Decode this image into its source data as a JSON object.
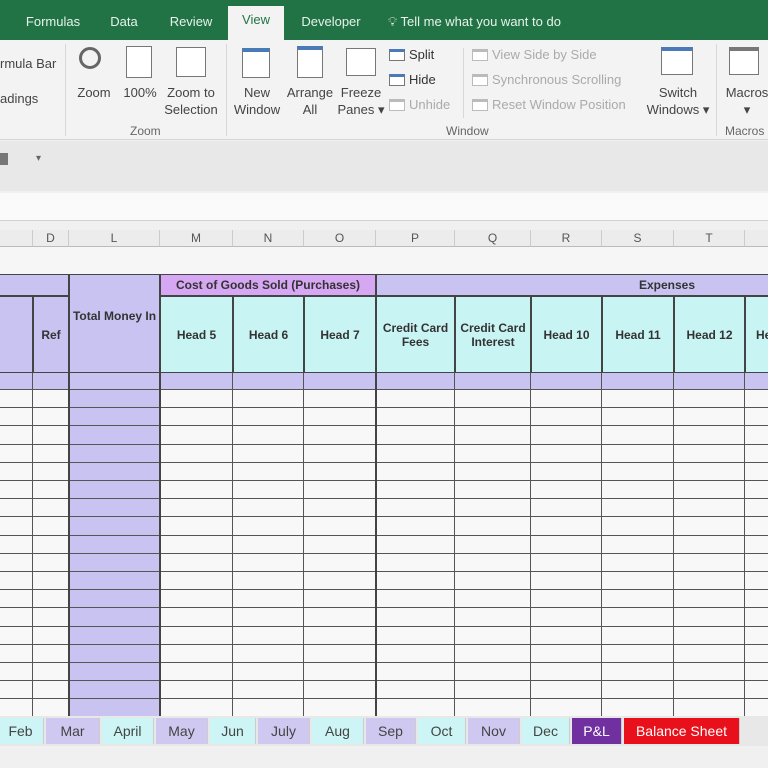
{
  "ribbon_tabs": [
    {
      "label": "Formulas"
    },
    {
      "label": "Data"
    },
    {
      "label": "Review"
    },
    {
      "label": "View",
      "active": true
    },
    {
      "label": "Developer"
    }
  ],
  "tell_me": {
    "icon": "lightbulb-icon",
    "label": "Tell me what you want to do"
  },
  "show_group": {
    "formula_bar": "rmula Bar",
    "headings": "adings"
  },
  "zoom_group": {
    "label": "Zoom",
    "zoom": "Zoom",
    "hundred": "100%",
    "zoom_sel_1": "Zoom to",
    "zoom_sel_2": "Selection"
  },
  "window_group": {
    "label": "Window",
    "new_1": "New",
    "new_2": "Window",
    "arrange_1": "Arrange",
    "arrange_2": "All",
    "freeze_1": "Freeze",
    "freeze_2": "Panes ▾",
    "split": "Split",
    "hide": "Hide",
    "unhide": "Unhide",
    "side_by_side": "View Side by Side",
    "sync_scroll": "Synchronous Scrolling",
    "reset_pos": "Reset Window Position",
    "switch_1": "Switch",
    "switch_2": "Windows ▾"
  },
  "macros_group": {
    "label": "Macros",
    "button": "Macros",
    "arrow": "▾"
  },
  "quick_access": {
    "customize": "▾"
  },
  "columns": [
    "",
    "D",
    "L",
    "M",
    "N",
    "O",
    "P",
    "Q",
    "R",
    "S",
    "T",
    ""
  ],
  "headers": {
    "ref": "Ref",
    "total_money_in": "Total Money In",
    "cogs": "Cost of Goods Sold (Purchases)",
    "expenses": "Expenses",
    "heads": [
      "Head 5",
      "Head 6",
      "Head 7",
      "Credit Card Fees",
      "Credit Card Interest",
      "Head 10",
      "Head 11",
      "Head 12",
      "He"
    ]
  },
  "sheet_tabs": [
    {
      "label": "Feb",
      "color": "#cdf5f5"
    },
    {
      "label": "Mar",
      "color": "#cfc8f0"
    },
    {
      "label": "April",
      "color": "#cdf5f5"
    },
    {
      "label": "May",
      "color": "#cfc8f0"
    },
    {
      "label": "Jun",
      "color": "#cdf5f5"
    },
    {
      "label": "July",
      "color": "#cfc8f0"
    },
    {
      "label": "Aug",
      "color": "#cdf5f5"
    },
    {
      "label": "Sep",
      "color": "#cfc8f0"
    },
    {
      "label": "Oct",
      "color": "#cdf5f5"
    },
    {
      "label": "Nov",
      "color": "#cfc8f0"
    },
    {
      "label": "Dec",
      "color": "#cdf5f5"
    },
    {
      "label": "P&L",
      "color": "#7030a0"
    },
    {
      "label": "Balance Sheet",
      "color": "#e8101a"
    }
  ],
  "colors": {
    "excel_green": "#217346",
    "header_purple": "#c9c3f2",
    "header_cyan": "#c9f4f4",
    "cogs_purple": "#d6a7f2"
  }
}
